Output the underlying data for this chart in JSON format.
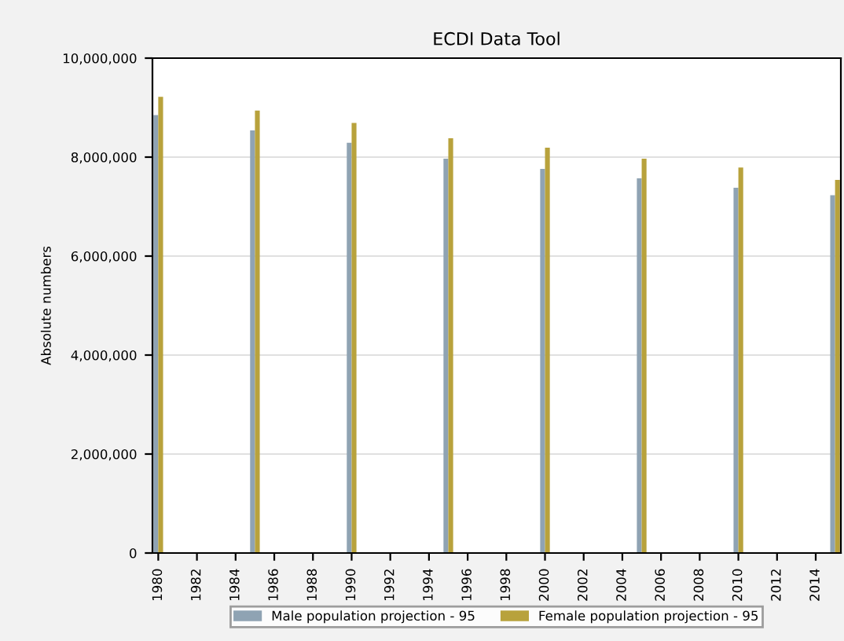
{
  "chart_data": {
    "type": "bar",
    "title": "ECDI Data Tool",
    "ylabel": "Absolute numbers",
    "x": [
      1980,
      1985,
      1990,
      1995,
      2000,
      2005,
      2010,
      2015
    ],
    "series": [
      {
        "name": "Male population projection - 95",
        "color": "#8fa3b3",
        "values": [
          8850000,
          8540000,
          8290000,
          7970000,
          7760000,
          7570000,
          7380000,
          7230000
        ]
      },
      {
        "name": "Female population projection - 95",
        "color": "#b8a23c",
        "values": [
          9220000,
          8940000,
          8690000,
          8380000,
          8190000,
          7970000,
          7790000,
          7540000
        ]
      }
    ],
    "xlim": [
      1979.7,
      2015.3
    ],
    "xticks": [
      1980,
      1982,
      1984,
      1986,
      1988,
      1990,
      1992,
      1994,
      1996,
      1998,
      2000,
      2002,
      2004,
      2006,
      2008,
      2010,
      2012,
      2014
    ],
    "ylim": [
      0,
      10000000
    ],
    "yticks": [
      {
        "value": 0,
        "label": "0"
      },
      {
        "value": 2000000,
        "label": "2,000,000"
      },
      {
        "value": 4000000,
        "label": "4,000,000"
      },
      {
        "value": 6000000,
        "label": "6,000,000"
      },
      {
        "value": 8000000,
        "label": "8,000,000"
      },
      {
        "value": 10000000,
        "label": "10,000,000"
      }
    ],
    "grid": "y",
    "legend": "bottom"
  }
}
